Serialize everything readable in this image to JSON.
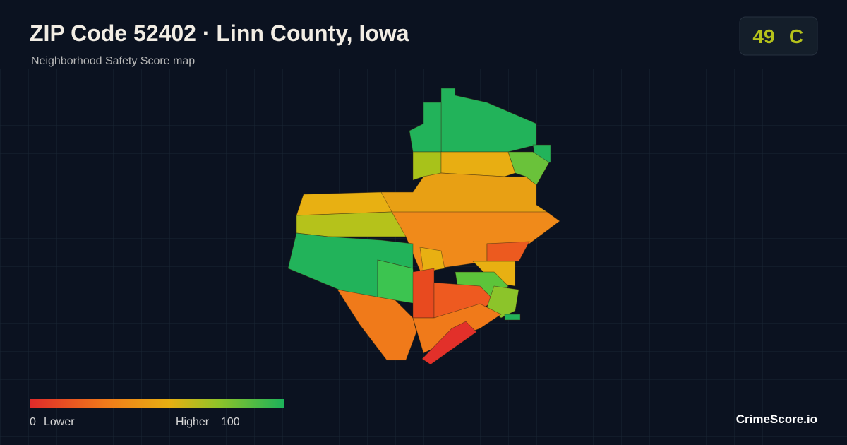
{
  "header": {
    "title": "ZIP Code 52402 · Linn County, Iowa",
    "subtitle": "Neighborhood Safety Score map"
  },
  "badge": {
    "score": 49,
    "grade": "C"
  },
  "legend": {
    "min": 0,
    "min_label": "Lower",
    "max_label": "Higher",
    "max": 100
  },
  "brand": "CrimeScore.io"
}
